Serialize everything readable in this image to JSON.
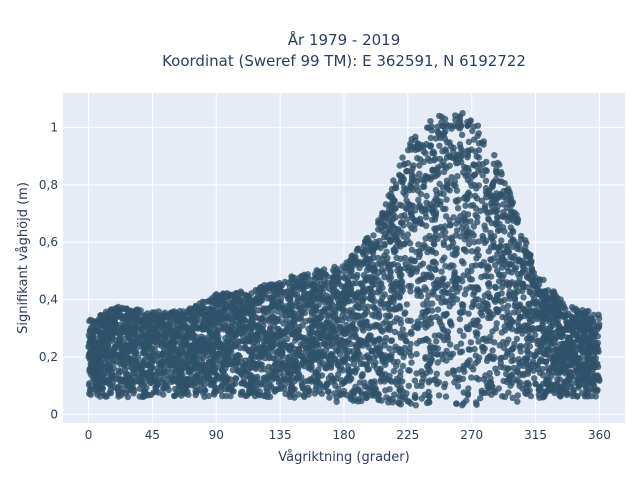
{
  "chart_data": {
    "type": "scatter",
    "title_line1": "År 1979 - 2019",
    "title_line2": "Koordinat (Sweref 99 TM): E 362591, N 6192722",
    "xlabel": "Vågriktning (grader)",
    "ylabel": "Signifikant våghöjd (m)",
    "xlim": [
      -18,
      378
    ],
    "ylim": [
      -0.03,
      1.12
    ],
    "x_ticks": [
      0,
      45,
      90,
      135,
      180,
      225,
      270,
      315,
      360
    ],
    "x_tick_labels": [
      "0",
      "45",
      "90",
      "135",
      "180",
      "225",
      "270",
      "315",
      "360"
    ],
    "y_ticks": [
      0,
      0.2,
      0.4,
      0.6,
      0.8,
      1
    ],
    "y_tick_labels": [
      "0",
      "0,2",
      "0,4",
      "0,6",
      "0,8",
      "1"
    ],
    "grid": true,
    "legend": "none",
    "marker_color": "#2f5169",
    "background_color": "#e5ecf6",
    "envelope": {
      "x": [
        0,
        22,
        45,
        67,
        90,
        112,
        135,
        157,
        180,
        202,
        225,
        247,
        270,
        292,
        315,
        337,
        360
      ],
      "y_min": [
        0.06,
        0.06,
        0.06,
        0.06,
        0.06,
        0.06,
        0.06,
        0.05,
        0.04,
        0.04,
        0.03,
        0.03,
        0.03,
        0.04,
        0.05,
        0.06,
        0.06
      ],
      "y_max": [
        0.33,
        0.38,
        0.36,
        0.36,
        0.42,
        0.43,
        0.47,
        0.5,
        0.52,
        0.65,
        0.95,
        1.05,
        1.05,
        0.85,
        0.5,
        0.38,
        0.35
      ]
    }
  }
}
